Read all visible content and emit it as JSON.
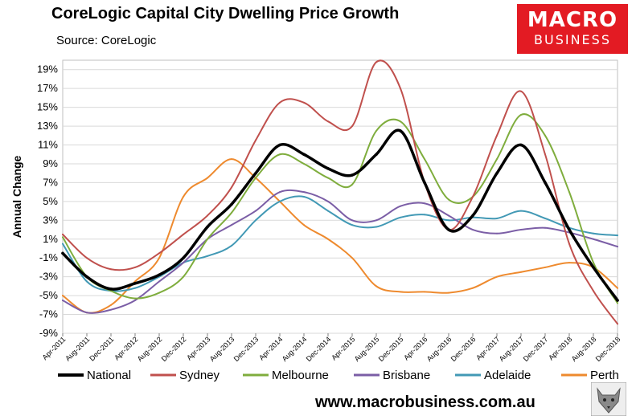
{
  "header": {
    "title": "CoreLogic Capital City Dwelling Price Growth",
    "subtitle": "Source: CoreLogic"
  },
  "logo": {
    "line1": "MACRO",
    "line2": "BUSINESS",
    "color": "#e31b23"
  },
  "footer": {
    "website": "www.macrobusiness.com.au",
    "icon": "wolf-icon"
  },
  "chart_data": {
    "type": "line",
    "title": "CoreLogic Capital City Dwelling Price Growth",
    "xlabel": "",
    "ylabel": "Annual Change",
    "ylim": [
      -9,
      20
    ],
    "yticks": [
      -9,
      -7,
      -5,
      -3,
      -1,
      1,
      3,
      5,
      7,
      9,
      11,
      13,
      15,
      17,
      19
    ],
    "ytick_labels": [
      "-9%",
      "-7%",
      "-5%",
      "-3%",
      "-1%",
      "1%",
      "3%",
      "5%",
      "7%",
      "9%",
      "11%",
      "13%",
      "15%",
      "17%",
      "19%"
    ],
    "xtick_labels": [
      "Apr-2011",
      "Aug-2011",
      "Dec-2011",
      "Apr-2012",
      "Aug-2012",
      "Dec-2012",
      "Apr-2013",
      "Aug-2013",
      "Dec-2013",
      "Apr-2014",
      "Aug-2014",
      "Dec-2014",
      "Apr-2015",
      "Aug-2015",
      "Dec-2015",
      "Apr-2016",
      "Aug-2016",
      "Dec-2016",
      "Apr-2017",
      "Aug-2017",
      "Dec-2017",
      "Apr-2018",
      "Aug-2018",
      "Dec-2018"
    ],
    "x": [
      0,
      4,
      8,
      12,
      16,
      20,
      24,
      28,
      32,
      36,
      40,
      44,
      48,
      52,
      56,
      60,
      64,
      68,
      72,
      76,
      80,
      84,
      88,
      92
    ],
    "grid": true,
    "legend": "bottom",
    "series": [
      {
        "name": "National",
        "color": "#000000",
        "width": 3.5,
        "values": [
          -0.5,
          -3.0,
          -4.3,
          -3.7,
          -2.8,
          -1.0,
          2.3,
          4.7,
          8.0,
          11.0,
          10.0,
          8.5,
          7.8,
          10.0,
          12.5,
          7.0,
          2.0,
          3.5,
          8.0,
          11.0,
          7.0,
          2.0,
          -2.0,
          -5.5
        ]
      },
      {
        "name": "Sydney",
        "color": "#c0504d",
        "width": 2,
        "values": [
          1.5,
          -1.0,
          -2.2,
          -2.0,
          -0.5,
          1.5,
          3.5,
          6.5,
          11.5,
          15.5,
          15.5,
          13.5,
          13.0,
          19.8,
          17.0,
          7.0,
          2.0,
          5.5,
          12.0,
          16.7,
          10.0,
          0.5,
          -4.5,
          -8.0
        ]
      },
      {
        "name": "Melbourne",
        "color": "#7fad3d",
        "width": 2,
        "values": [
          1.2,
          -3.0,
          -4.5,
          -5.3,
          -4.7,
          -3.0,
          1.0,
          3.8,
          7.5,
          10.0,
          9.0,
          7.5,
          6.8,
          12.5,
          13.5,
          9.5,
          5.2,
          5.5,
          9.5,
          14.2,
          12.0,
          6.0,
          -1.5,
          -5.8
        ]
      },
      {
        "name": "Brisbane",
        "color": "#7b5ea6",
        "width": 2,
        "values": [
          -5.5,
          -6.8,
          -6.5,
          -5.5,
          -3.5,
          -1.5,
          1.0,
          2.5,
          4.0,
          6.0,
          6.0,
          5.0,
          3.0,
          3.0,
          4.5,
          4.8,
          3.5,
          2.0,
          1.6,
          2.0,
          2.2,
          1.7,
          1.0,
          0.2
        ]
      },
      {
        "name": "Adelaide",
        "color": "#4299b5",
        "width": 2,
        "values": [
          0.5,
          -3.5,
          -4.5,
          -4.2,
          -3.0,
          -1.5,
          -0.8,
          0.3,
          3.0,
          5.0,
          5.5,
          4.0,
          2.5,
          2.3,
          3.3,
          3.6,
          3.0,
          3.3,
          3.2,
          4.0,
          3.2,
          2.2,
          1.6,
          1.4
        ]
      },
      {
        "name": "Perth",
        "color": "#ee8a2e",
        "width": 2,
        "values": [
          -5.0,
          -6.8,
          -6.0,
          -3.5,
          -1.0,
          5.5,
          7.5,
          9.5,
          7.5,
          5.0,
          2.5,
          1.0,
          -1.0,
          -4.0,
          -4.6,
          -4.6,
          -4.7,
          -4.2,
          -3.0,
          -2.5,
          -2.0,
          -1.5,
          -2.0,
          -4.2
        ]
      }
    ]
  }
}
